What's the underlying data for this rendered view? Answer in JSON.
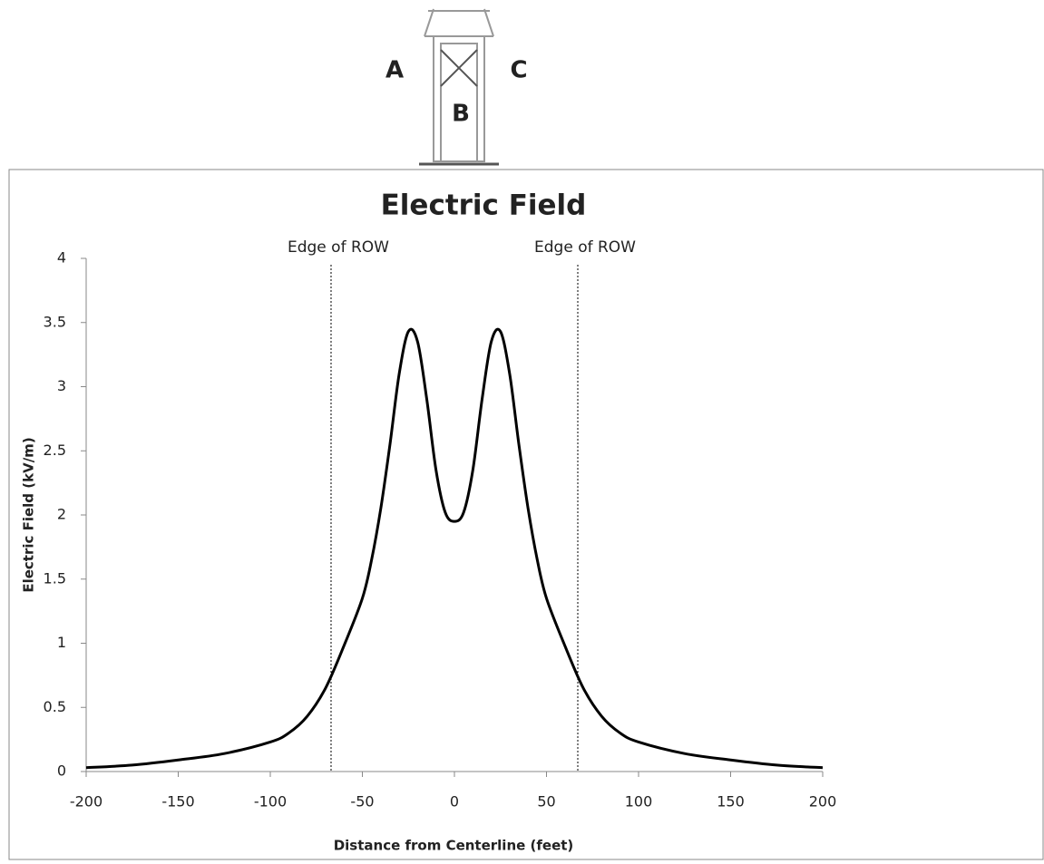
{
  "diagram": {
    "labels": [
      "A",
      "B",
      "C"
    ]
  },
  "chart_data": {
    "type": "line",
    "title": "Electric Field",
    "x_label": "Distance from Centerline (feet)",
    "y_label": "Electric Field (kV/m)",
    "x": [
      -200,
      -175,
      -150,
      -125,
      -100,
      -90,
      -80,
      -70,
      -60,
      -50,
      -45,
      -40,
      -35,
      -30,
      -25,
      -20,
      -15,
      -10,
      -5,
      0,
      5,
      10,
      15,
      20,
      25,
      30,
      35,
      40,
      45,
      50,
      60,
      70,
      80,
      90,
      100,
      125,
      150,
      175,
      200
    ],
    "series": [
      {
        "color": "#000000",
        "values": [
          0.03,
          0.05,
          0.09,
          0.14,
          0.23,
          0.3,
          0.43,
          0.65,
          0.98,
          1.35,
          1.65,
          2.05,
          2.55,
          3.1,
          3.43,
          3.35,
          2.9,
          2.35,
          2.02,
          1.95,
          2.02,
          2.35,
          2.9,
          3.35,
          3.43,
          3.1,
          2.55,
          2.05,
          1.65,
          1.35,
          0.98,
          0.65,
          0.43,
          0.3,
          0.23,
          0.14,
          0.09,
          0.05,
          0.03
        ]
      }
    ],
    "annotations": [
      {
        "text": "Edge of ROW",
        "x": -67
      },
      {
        "text": "Edge of ROW",
        "x": 67
      }
    ],
    "xlim": [
      -200,
      200
    ],
    "xticks": [
      -200,
      -150,
      -100,
      -50,
      0,
      50,
      100,
      150,
      200
    ],
    "ylim": [
      0,
      4
    ],
    "yticks": [
      0,
      0.5,
      1,
      1.5,
      2,
      2.5,
      3,
      3.5,
      4
    ],
    "grid": false
  }
}
